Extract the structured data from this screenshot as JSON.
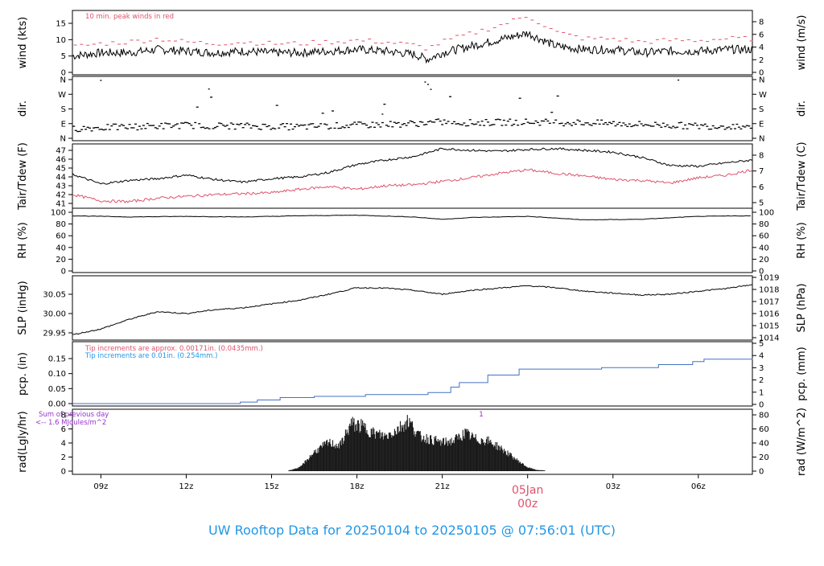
{
  "footer_title": "UW Rooftop Data for 20250104  to  20250105 @ 07:56:01  (UTC)",
  "date_marker": {
    "date": "05Jan",
    "hour": "00z"
  },
  "x_tick_labels": [
    "09z",
    "12z",
    "15z",
    "18z",
    "21z",
    "03z",
    "06z"
  ],
  "colors": {
    "series": "#000000",
    "red": "#DF536B",
    "blue": "#2297E6",
    "purple": "#9933CC",
    "pcp_line": "#4472C4"
  },
  "chart_data": [
    {
      "type": "line",
      "name": "wind",
      "annotation": "10 min. peak winds in red",
      "ylabel": "wind (kts)",
      "ylabel_right": "wind (m/s)",
      "yticks": [
        0,
        5,
        10,
        15
      ],
      "yticks_right": [
        0,
        2,
        4,
        6,
        8
      ],
      "x_hours": [
        8,
        9,
        10,
        11,
        12,
        13,
        14,
        15,
        16,
        17,
        18,
        19,
        20,
        20.5,
        21,
        22,
        23,
        24,
        25,
        26,
        27,
        28,
        29,
        30,
        31,
        31.9
      ],
      "series": [
        {
          "values": [
            5,
            6,
            6,
            7,
            6.5,
            6,
            6.5,
            6,
            6,
            6.5,
            7,
            6.5,
            5.5,
            4,
            6,
            8,
            10,
            12,
            8,
            7,
            7,
            6,
            6.5,
            6.5,
            7,
            7
          ]
        },
        {
          "values": [
            7.5,
            8.5,
            9,
            10,
            9,
            8.5,
            9,
            8.5,
            8.5,
            9,
            9.5,
            9,
            8,
            7,
            9,
            11.5,
            14,
            17,
            12,
            10,
            10,
            9,
            9.5,
            9.5,
            10,
            10
          ]
        }
      ]
    },
    {
      "type": "scatter",
      "name": "dir",
      "ylabel": "dir.",
      "ylabel_right": "dir.",
      "ytick_labels": [
        "N",
        "E",
        "S",
        "W",
        "N"
      ],
      "x_hours": [
        8,
        10,
        12,
        14,
        16,
        18,
        20,
        21,
        22,
        24,
        26,
        28,
        30,
        31.9
      ],
      "values": [
        60,
        70,
        80,
        75,
        70,
        80,
        90,
        100,
        95,
        100,
        95,
        85,
        75,
        75
      ]
    },
    {
      "type": "line",
      "name": "temperature",
      "ylabel": "Tair/Tdew (F)",
      "ylabel_right": "Tair/Tdew (C)",
      "yticks": [
        41,
        42,
        43,
        44,
        45,
        46,
        47
      ],
      "yticks_right": [
        5,
        6,
        7,
        8
      ],
      "x_hours": [
        8,
        9,
        10,
        11,
        12,
        13,
        14,
        15,
        16,
        17,
        18,
        19,
        20,
        21,
        22,
        23,
        24,
        25,
        26,
        27,
        28,
        29,
        30,
        31,
        31.9
      ],
      "series": [
        {
          "values": [
            44.3,
            43.2,
            43.6,
            43.8,
            44.2,
            43.7,
            43.4,
            43.8,
            44.0,
            44.5,
            45.4,
            45.9,
            46.3,
            47.2,
            47.0,
            46.9,
            47.1,
            47.2,
            47.0,
            46.8,
            46.2,
            45.3,
            45.2,
            45.6,
            45.9
          ]
        },
        {
          "values": [
            42.0,
            41.3,
            41.2,
            41.6,
            41.8,
            42.0,
            42.1,
            42.2,
            42.6,
            42.9,
            42.6,
            43.0,
            43.1,
            43.5,
            43.9,
            44.4,
            44.8,
            44.4,
            44.1,
            43.7,
            43.6,
            43.3,
            43.9,
            44.2,
            44.8
          ]
        }
      ]
    },
    {
      "type": "line",
      "name": "rh",
      "ylabel": "RH (%)",
      "ylabel_right": "RH (%)",
      "yticks": [
        0,
        20,
        40,
        60,
        80,
        100
      ],
      "x_hours": [
        8,
        10,
        12,
        14,
        16,
        18,
        20,
        21,
        22,
        24,
        26,
        28,
        30,
        31.9
      ],
      "values": [
        94,
        92,
        93,
        92,
        94,
        95,
        92,
        88,
        91,
        93,
        87,
        88,
        93,
        94
      ]
    },
    {
      "type": "line",
      "name": "slp",
      "ylabel": "SLP (inHg)",
      "ylabel_right": "SLP (hPa)",
      "yticks": [
        29.95,
        30.0,
        30.05
      ],
      "yticks_right": [
        1014,
        1015,
        1016,
        1017,
        1018,
        1019
      ],
      "x_hours": [
        8,
        9,
        10,
        11,
        12,
        13,
        14,
        15,
        16,
        17,
        18,
        19,
        20,
        21,
        22,
        23,
        24,
        25,
        26,
        27,
        28,
        29,
        30,
        31,
        31.9
      ],
      "values": [
        29.945,
        29.96,
        29.985,
        30.005,
        30.0,
        30.01,
        30.015,
        30.025,
        30.035,
        30.05,
        30.067,
        30.066,
        30.06,
        30.05,
        30.06,
        30.066,
        30.072,
        30.067,
        30.058,
        30.053,
        30.048,
        30.05,
        30.058,
        30.065,
        30.075
      ]
    },
    {
      "type": "line",
      "name": "precip",
      "annotations": [
        "Tip increments are approx. 0.00171in. (0.0435mm.)",
        "Tip increments are 0.01in. (0.254mm.)"
      ],
      "ylabel": "pcp. (in)",
      "ylabel_right": "pcp. (mm)",
      "yticks": [
        0.0,
        0.05,
        0.1,
        0.15
      ],
      "yticks_right": [
        0,
        1,
        2,
        3,
        4,
        5
      ],
      "x_hours": [
        8,
        13.9,
        14.5,
        15.3,
        16.5,
        18.3,
        20.5,
        21.3,
        21.6,
        22.6,
        23.7,
        26.6,
        28.6,
        29.8,
        30.2,
        31.9
      ],
      "values": [
        0,
        0.005,
        0.012,
        0.02,
        0.024,
        0.03,
        0.037,
        0.055,
        0.07,
        0.095,
        0.115,
        0.12,
        0.13,
        0.14,
        0.148,
        0.15
      ]
    },
    {
      "type": "bar",
      "name": "radiation",
      "annotations": [
        "Sum of previous day",
        "<-- 1.6 MJoules/m^2",
        "1"
      ],
      "ylabel": "rad(Lgly/hr)",
      "ylabel_right": "rad (W/m^2)",
      "yticks": [
        0,
        2,
        4,
        6,
        8
      ],
      "yticks_right": [
        0,
        20,
        40,
        60,
        80
      ],
      "x_hours": [
        15.6,
        16.0,
        16.5,
        17.0,
        17.4,
        17.8,
        18.2,
        18.6,
        19.0,
        19.4,
        19.8,
        20.2,
        20.6,
        21.0,
        21.4,
        21.8,
        22.2,
        22.6,
        23.0,
        23.4,
        23.8,
        24.0,
        24.3,
        24.6
      ],
      "values": [
        0.1,
        0.6,
        3.0,
        4.5,
        4.0,
        7.5,
        7.0,
        6.0,
        5.5,
        6.5,
        8.0,
        5.5,
        5.0,
        4.5,
        4.8,
        6.0,
        5.0,
        4.8,
        3.8,
        2.5,
        1.2,
        0.6,
        0.2,
        0.1
      ]
    }
  ]
}
